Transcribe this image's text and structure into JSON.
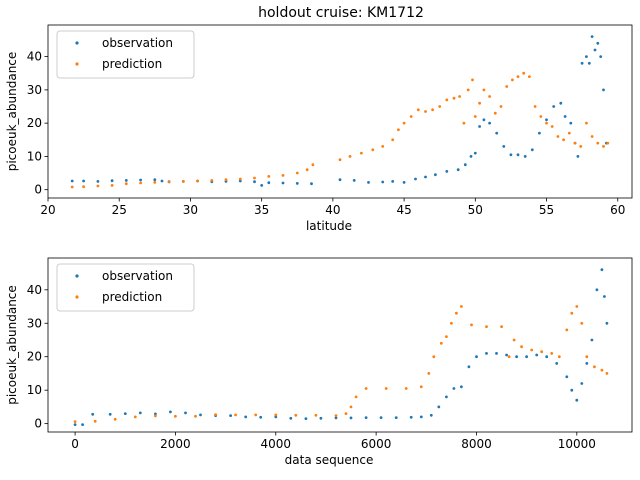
{
  "figure": {
    "title": "holdout cruise: KM1712"
  },
  "colors": {
    "observation": "#1f77b4",
    "prediction": "#ff7f0e"
  },
  "chart_data": [
    {
      "type": "scatter",
      "title": "holdout cruise: KM1712",
      "xlabel": "latitude",
      "ylabel": "picoeuk_abundance",
      "xlim": [
        20,
        61
      ],
      "ylim": [
        -2.5,
        49.5
      ],
      "xticks": [
        20,
        25,
        30,
        35,
        40,
        45,
        50,
        55,
        60
      ],
      "yticks": [
        0,
        10,
        20,
        30,
        40
      ],
      "legend": {
        "position": "top-left",
        "entries": [
          "observation",
          "prediction"
        ]
      },
      "series": [
        {
          "name": "observation",
          "x": [
            21.7,
            22.5,
            23.5,
            24.5,
            25.5,
            26.5,
            27.5,
            28,
            28.5,
            29.5,
            30.5,
            31.5,
            32.5,
            33.5,
            34.5,
            35,
            35.5,
            36.5,
            37.5,
            38.5,
            40.5,
            41.5,
            42.5,
            43.5,
            44.2,
            45,
            45.8,
            46.5,
            47.2,
            48,
            48.8,
            49.3,
            49.7,
            50,
            50.3,
            50.6,
            51,
            51.5,
            52,
            52.5,
            53,
            53.5,
            54,
            54.5,
            55,
            55.5,
            56,
            56.3,
            56.7,
            57,
            57.2,
            57.5,
            57.8,
            58,
            58.2,
            58.4,
            58.6,
            58.8,
            59,
            59.2
          ],
          "y": [
            2.6,
            2.6,
            2.5,
            2.7,
            2.8,
            2.9,
            3,
            2.6,
            2.4,
            2.5,
            2.6,
            2.4,
            2.5,
            2.6,
            2.4,
            1.3,
            2.1,
            2,
            1.9,
            1.8,
            3,
            2.8,
            2.2,
            2.3,
            2.5,
            2.2,
            3.2,
            3.8,
            4.5,
            5.5,
            6,
            7.5,
            10,
            11,
            19,
            21,
            20,
            17,
            13,
            10.5,
            10.5,
            10,
            12,
            17,
            21,
            25,
            26,
            22,
            20,
            14,
            10,
            38,
            40,
            38,
            46,
            42,
            44,
            40,
            30,
            14
          ]
        },
        {
          "name": "prediction",
          "x": [
            21.7,
            22.5,
            23.5,
            24.5,
            25.5,
            26.5,
            27.5,
            28.5,
            29.5,
            30.5,
            31.5,
            32.5,
            33.5,
            34.5,
            35.5,
            36.5,
            37.5,
            38.2,
            38.6,
            40.5,
            41.2,
            42,
            42.8,
            43.5,
            44.2,
            44.6,
            45,
            45.5,
            46,
            46.5,
            47,
            47.5,
            48,
            48.5,
            48.9,
            49.2,
            49.5,
            49.8,
            50,
            50.3,
            50.6,
            51,
            51.4,
            51.8,
            52.2,
            52.6,
            53,
            53.4,
            53.8,
            54.2,
            54.6,
            55,
            55.4,
            55.8,
            56.2,
            56.6,
            57,
            57.4,
            57.8,
            58.2,
            58.6,
            59,
            59.3
          ],
          "y": [
            0.8,
            0.9,
            1.1,
            1.3,
            1.8,
            2,
            2.2,
            2.3,
            2.5,
            2.6,
            2.8,
            3,
            3.2,
            3.5,
            4,
            4.3,
            5,
            6,
            7.5,
            9,
            10,
            11,
            12,
            13,
            15,
            18,
            20,
            22,
            24,
            23.5,
            24,
            25,
            27,
            27.5,
            28,
            20,
            30,
            33,
            22,
            26,
            30,
            28,
            23,
            25,
            31,
            33,
            34,
            35,
            34,
            25,
            22,
            20,
            19,
            16,
            15,
            17,
            14,
            13,
            20,
            16,
            14,
            13,
            14
          ]
        }
      ]
    },
    {
      "type": "scatter",
      "xlabel": "data sequence",
      "ylabel": "picoeuk_abundance",
      "xlim": [
        -540,
        11100
      ],
      "ylim": [
        -2.5,
        49.5
      ],
      "xticks": [
        0,
        2000,
        4000,
        6000,
        8000,
        10000
      ],
      "yticks": [
        0,
        10,
        20,
        30,
        40
      ],
      "legend": {
        "position": "top-left",
        "entries": [
          "observation",
          "prediction"
        ]
      },
      "series": [
        {
          "name": "observation",
          "x": [
            0,
            150,
            350,
            700,
            1000,
            1300,
            1600,
            1900,
            2200,
            2500,
            2800,
            3100,
            3400,
            3700,
            4000,
            4300,
            4600,
            4900,
            5200,
            5500,
            5800,
            6100,
            6400,
            6700,
            6900,
            7100,
            7250,
            7400,
            7550,
            7700,
            7850,
            8000,
            8200,
            8400,
            8600,
            8800,
            9000,
            9200,
            9400,
            9600,
            9800,
            9900,
            10000,
            10100,
            10200,
            10300,
            10400,
            10500,
            10550,
            10600
          ],
          "y": [
            -0.3,
            -0.3,
            2.8,
            2.8,
            3,
            3.2,
            2.9,
            3.5,
            3.2,
            2.6,
            2.4,
            2.4,
            2,
            1.9,
            2,
            1.6,
            1.5,
            1.6,
            1.7,
            1.7,
            1.8,
            1.8,
            1.8,
            1.9,
            2,
            2.5,
            5,
            8,
            10.5,
            11,
            17,
            20,
            21,
            21,
            20.5,
            20,
            20,
            20.5,
            20,
            18,
            14,
            10,
            7,
            12,
            18,
            25,
            40,
            46,
            38,
            30
          ]
        },
        {
          "name": "prediction",
          "x": [
            0,
            400,
            800,
            1200,
            1600,
            2000,
            2400,
            2800,
            3200,
            3600,
            4000,
            4400,
            4800,
            5200,
            5400,
            5500,
            5600,
            5800,
            6200,
            6600,
            6900,
            7050,
            7150,
            7300,
            7400,
            7500,
            7600,
            7700,
            7900,
            8200,
            8500,
            8650,
            8750,
            8900,
            9100,
            9300,
            9500,
            9650,
            9800,
            9900,
            10000,
            10100,
            10200,
            10350,
            10500,
            10600
          ],
          "y": [
            0.6,
            0.7,
            1.3,
            2,
            2.3,
            2.2,
            2.2,
            2.7,
            2.6,
            2.6,
            2.6,
            2.5,
            2.5,
            2.4,
            3,
            5,
            8,
            10.5,
            10.5,
            10.5,
            11,
            15,
            20,
            24,
            26,
            30,
            33,
            35,
            29.5,
            29,
            29,
            20,
            25,
            23,
            22,
            21.5,
            21,
            20,
            28,
            33,
            35,
            30,
            20,
            17,
            16,
            15
          ]
        }
      ]
    }
  ]
}
